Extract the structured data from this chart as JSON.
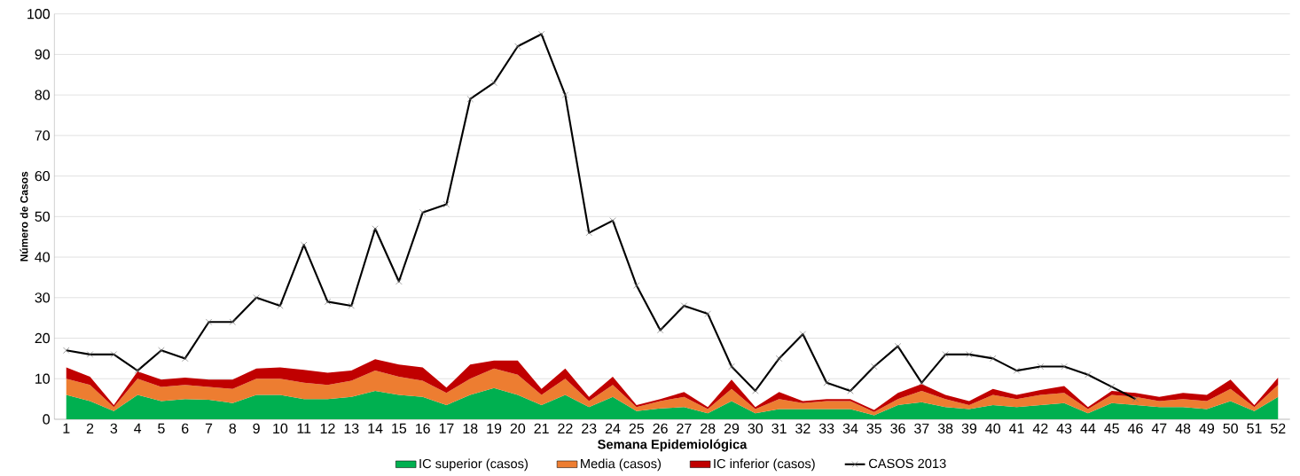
{
  "chart_data": {
    "type": "area",
    "stacked": true,
    "xlabel": "Semana Epidemiológica",
    "ylabel": "Número de Casos",
    "categories": [
      "1",
      "2",
      "3",
      "4",
      "5",
      "6",
      "7",
      "8",
      "9",
      "10",
      "11",
      "12",
      "13",
      "14",
      "15",
      "16",
      "17",
      "18",
      "19",
      "20",
      "21",
      "22",
      "23",
      "24",
      "25",
      "26",
      "27",
      "28",
      "29",
      "30",
      "31",
      "32",
      "33",
      "34",
      "35",
      "36",
      "37",
      "38",
      "39",
      "40",
      "41",
      "42",
      "43",
      "44",
      "45",
      "46",
      "47",
      "48",
      "49",
      "50",
      "51",
      "52"
    ],
    "ylim": [
      0,
      100
    ],
    "yticks": [
      0,
      10,
      20,
      30,
      40,
      50,
      60,
      70,
      80,
      90,
      100
    ],
    "grid": "y",
    "legend": "bottom",
    "series": [
      {
        "name": "IC superior (casos)",
        "color": "#00b050",
        "values": [
          6,
          4.5,
          2,
          6,
          4.5,
          5,
          4.8,
          4,
          6,
          6,
          5,
          5,
          5.5,
          7,
          6,
          5.5,
          3.5,
          6,
          7.7,
          6,
          3.5,
          6,
          3,
          5.5,
          2,
          2.7,
          3,
          1.5,
          4.5,
          1.5,
          2.5,
          2.5,
          2.5,
          2.5,
          1,
          3.5,
          4.2,
          3,
          2.5,
          3.5,
          3,
          3.5,
          4,
          1.5,
          4,
          3.5,
          3,
          3,
          2.5,
          4.5,
          2,
          5.5
        ]
      },
      {
        "name": "Media (casos)",
        "color": "#ed7d31",
        "values": [
          4,
          4,
          1,
          4,
          3.5,
          3.5,
          3.2,
          3.5,
          4,
          4,
          4,
          3.5,
          4,
          5,
          4.5,
          4,
          3,
          4,
          4.8,
          5,
          2.5,
          4,
          1.5,
          3,
          1,
          1.8,
          2.5,
          1,
          3,
          1,
          2.5,
          1.5,
          2,
          2,
          0.8,
          1.5,
          2.8,
          2,
          1,
          2.5,
          2,
          2.5,
          2.5,
          1,
          2,
          2,
          1.5,
          2,
          2,
          3,
          1,
          3
        ]
      },
      {
        "name": "IC inferior (casos)",
        "color": "#c00000",
        "values": [
          2.8,
          2,
          0.5,
          1.8,
          1.8,
          1.8,
          1.8,
          2.3,
          2.5,
          2.8,
          3.2,
          3,
          2.5,
          2.8,
          3,
          3.3,
          1.3,
          3.5,
          2,
          3.5,
          1.5,
          2.5,
          1,
          2,
          0.5,
          0.5,
          1.2,
          0.5,
          2.3,
          0.5,
          1.7,
          0.5,
          0.5,
          0.5,
          0.5,
          1.5,
          1.7,
          1,
          1,
          1.5,
          1,
          1.2,
          1.7,
          0.5,
          1,
          1,
          1,
          1.5,
          1.5,
          2.3,
          0.5,
          1.8
        ]
      },
      {
        "name": "CASOS 2013",
        "type": "line",
        "color": "#000000",
        "marker": "cross",
        "line_style": "solid",
        "values": [
          17,
          16,
          16,
          12,
          17,
          15,
          24,
          24,
          30,
          28,
          43,
          29,
          28,
          47,
          34,
          51,
          53,
          79,
          83,
          92,
          95,
          80,
          46,
          49,
          33,
          22,
          28,
          26,
          13,
          7,
          15,
          21,
          9,
          7,
          13,
          18,
          9,
          16,
          16,
          15,
          12,
          13,
          13,
          11,
          8,
          5,
          null,
          null,
          null,
          null,
          null,
          null
        ]
      }
    ]
  }
}
